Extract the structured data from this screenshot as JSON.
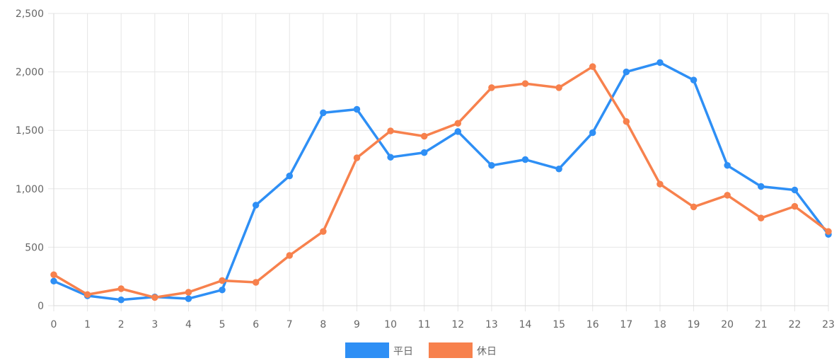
{
  "chart_data": {
    "type": "line",
    "title": "",
    "xlabel": "",
    "ylabel": "",
    "categories": [
      "0",
      "1",
      "2",
      "3",
      "4",
      "5",
      "6",
      "7",
      "8",
      "9",
      "10",
      "11",
      "12",
      "13",
      "14",
      "15",
      "16",
      "17",
      "18",
      "19",
      "20",
      "21",
      "22",
      "23"
    ],
    "ylim": [
      0,
      2500
    ],
    "y_ticks": [
      "0",
      "500",
      "1,000",
      "1,500",
      "2,000",
      "2,500"
    ],
    "y_tick_values": [
      0,
      500,
      1000,
      1500,
      2000,
      2500
    ],
    "grid": true,
    "legend_position": "bottom",
    "series": [
      {
        "name": "平日",
        "color": "#2e8ff5",
        "values": [
          210,
          85,
          50,
          75,
          60,
          135,
          860,
          1110,
          1650,
          1680,
          1270,
          1310,
          1490,
          1200,
          1250,
          1170,
          1480,
          2000,
          2080,
          1930,
          1200,
          1020,
          990,
          610
        ]
      },
      {
        "name": "休日",
        "color": "#f7814d",
        "values": [
          265,
          95,
          145,
          70,
          115,
          215,
          200,
          430,
          635,
          1265,
          1495,
          1450,
          1560,
          1865,
          1900,
          1865,
          2045,
          1575,
          1040,
          845,
          945,
          750,
          850,
          635
        ]
      }
    ]
  }
}
